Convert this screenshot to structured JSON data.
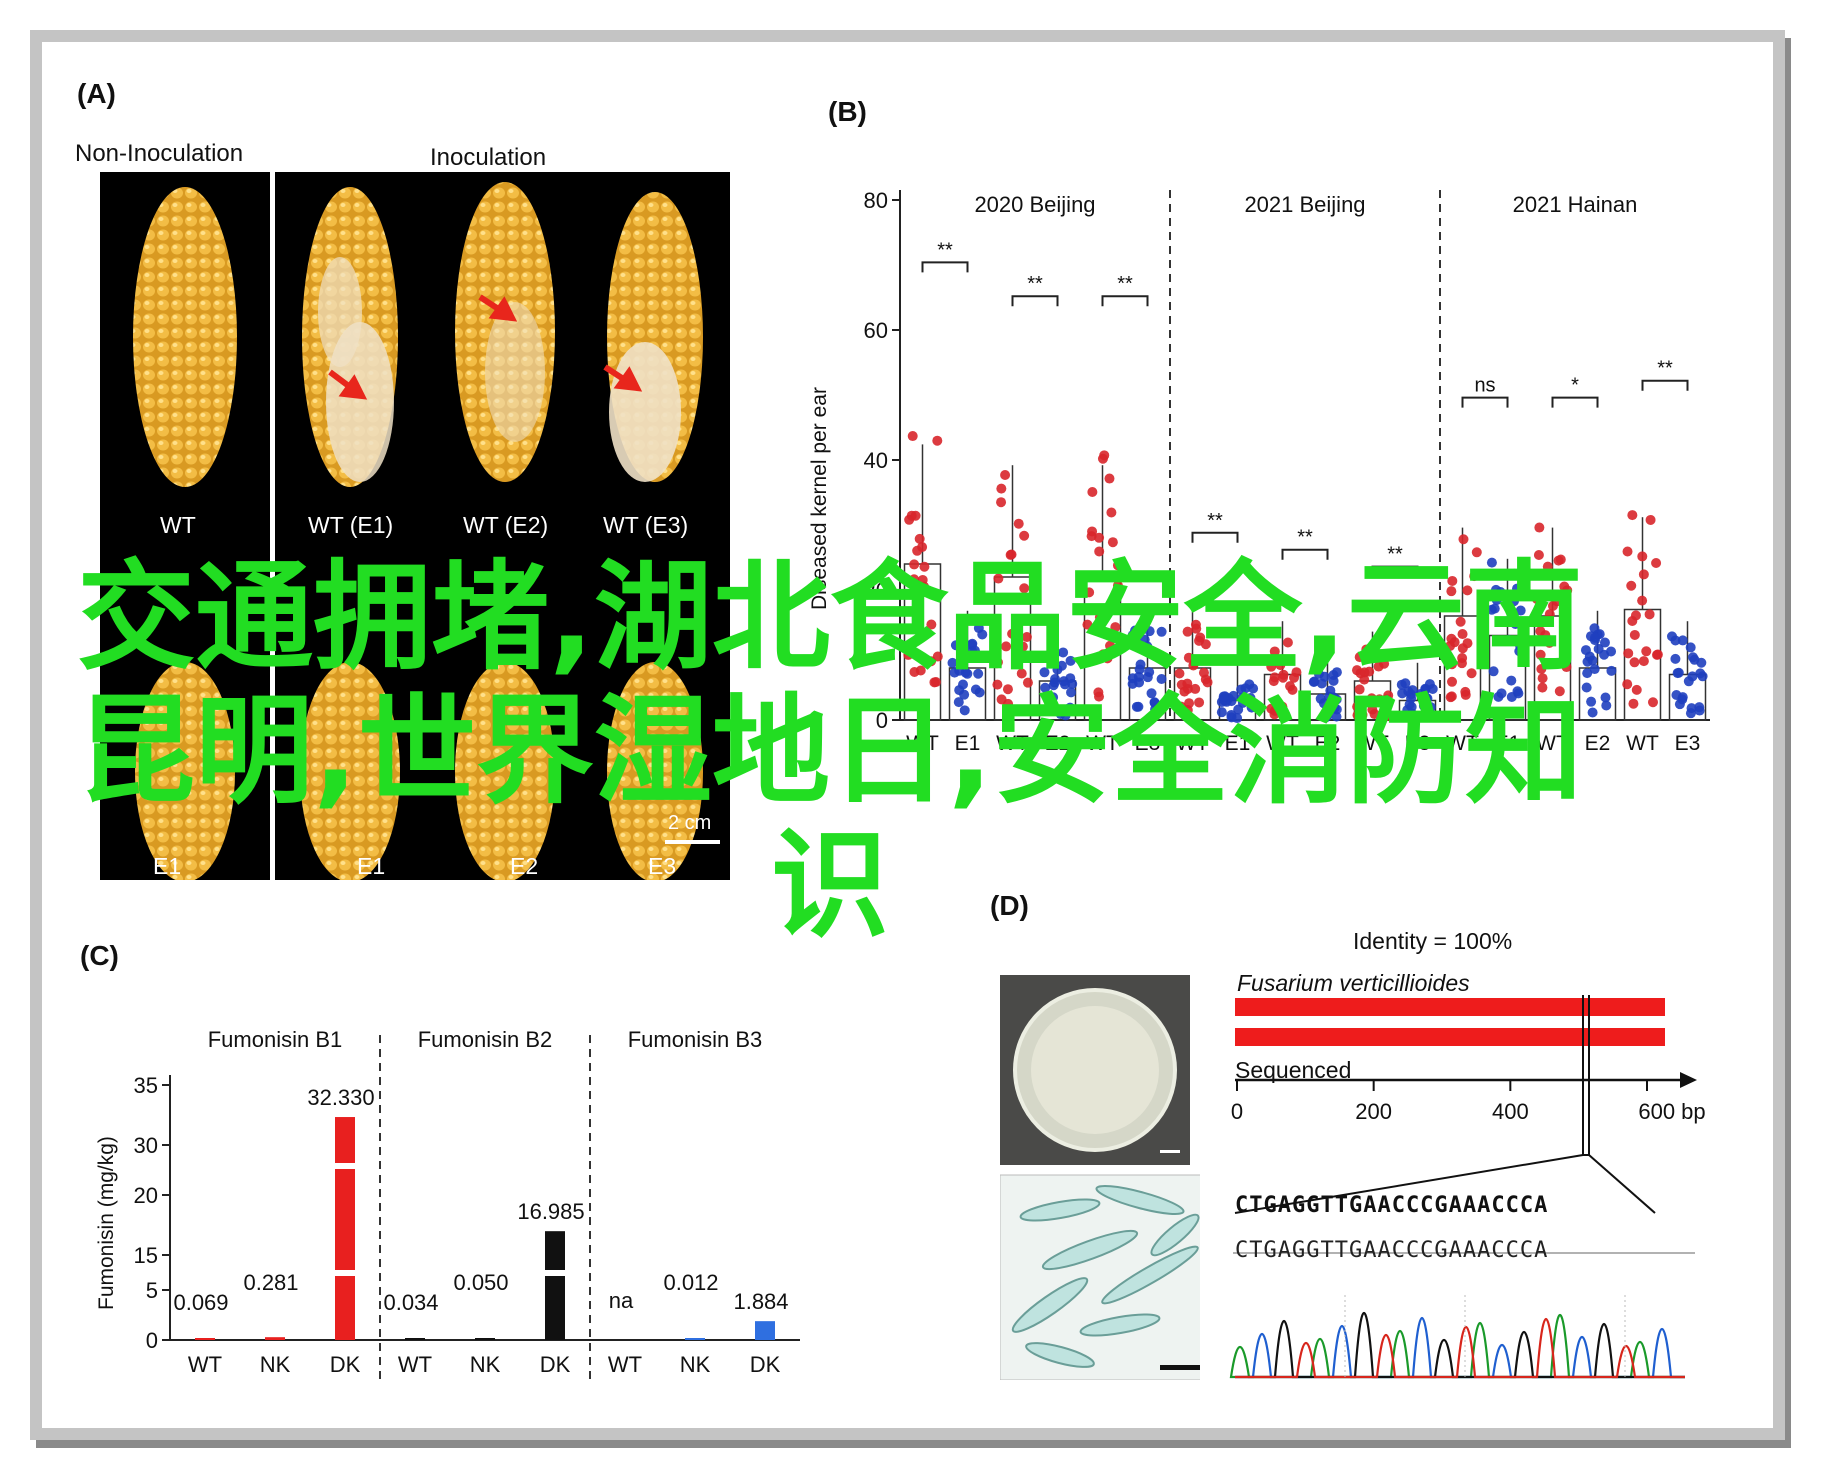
{
  "panelA": {
    "label": "(A)",
    "header_left": "Non-Inoculation",
    "header_right": "Inoculation",
    "row1_labels": [
      "WT",
      "WT (E1)",
      "WT (E2)",
      "WT (E3)"
    ],
    "row2_labels": [
      "E1",
      "E1",
      "E2",
      "E3"
    ],
    "scale_bar": "2 cm",
    "colors": {
      "kernel": "#f0b83a",
      "rot": "#efe1c6",
      "arrow": "#e8261c",
      "background": "#000000"
    }
  },
  "panelB": {
    "label": "(B)",
    "ylabel": "Diseased kernel per ear",
    "yticks": [
      "0",
      "20",
      "40",
      "60",
      "80"
    ],
    "groups": [
      {
        "title": "2020 Beijing",
        "categories": [
          "WT",
          "E1",
          "WT",
          "E2",
          "WT",
          "E3"
        ],
        "means": [
          24,
          8,
          22,
          6,
          22,
          8
        ],
        "brackets": [
          {
            "from": 0,
            "to": 1,
            "label": "**"
          },
          {
            "from": 2,
            "to": 3,
            "label": "**"
          },
          {
            "from": 4,
            "to": 5,
            "label": "**"
          }
        ]
      },
      {
        "title": "2021 Beijing",
        "categories": [
          "WT",
          "E1",
          "WT",
          "E2",
          "WT",
          "E3"
        ],
        "means": [
          8,
          3,
          7,
          4,
          6,
          3
        ],
        "brackets": [
          {
            "from": 0,
            "to": 1,
            "label": "**"
          },
          {
            "from": 2,
            "to": 3,
            "label": "**"
          },
          {
            "from": 4,
            "to": 5,
            "label": "**"
          }
        ]
      },
      {
        "title": "2021 Hainan",
        "categories": [
          "WT",
          "E1",
          "WT",
          "E2",
          "WT",
          "E3"
        ],
        "means": [
          16,
          13,
          16,
          8,
          17,
          7
        ],
        "brackets": [
          {
            "from": 0,
            "to": 1,
            "label": "ns"
          },
          {
            "from": 2,
            "to": 3,
            "label": "*"
          },
          {
            "from": 4,
            "to": 5,
            "label": "**"
          }
        ]
      }
    ],
    "colors": {
      "wt": "#d8262b",
      "mutant": "#1f3fbf"
    }
  },
  "panelC": {
    "label": "(C)",
    "ylabel": "Fumonisin (mg/kg)",
    "yticks": [
      "0",
      "5",
      "15",
      "20",
      "30",
      "35"
    ],
    "groups": [
      {
        "title": "Fumonisin B1",
        "categories": [
          "WT",
          "NK",
          "DK"
        ],
        "values": [
          "0.069",
          "0.281",
          "32.330"
        ],
        "color": "#e8201f"
      },
      {
        "title": "Fumonisin B2",
        "categories": [
          "WT",
          "NK",
          "DK"
        ],
        "values": [
          "0.034",
          "0.050",
          "16.985"
        ],
        "color": "#111111"
      },
      {
        "title": "Fumonisin B3",
        "categories": [
          "WT",
          "NK",
          "DK"
        ],
        "values": [
          "na",
          "0.012",
          "1.884"
        ],
        "color": "#2f6fe0"
      }
    ]
  },
  "panelD": {
    "label": "(D)",
    "identity": "Identity = 100%",
    "species": "Fusarium verticillioides",
    "sequenced_label": "Sequenced",
    "axis_ticks": [
      "0",
      "200",
      "400",
      "600 bp"
    ],
    "seq_line1": "CTGAGGTTGAACCCGAAACCCA",
    "seq_line2": "CTGAGGTTGAACCCGAAACCCA",
    "colors": {
      "bar": "#ee1c1c"
    }
  },
  "watermark": "交通拥堵,湖北食品安全,云南昆明,世界湿地日,安全消防知识"
}
